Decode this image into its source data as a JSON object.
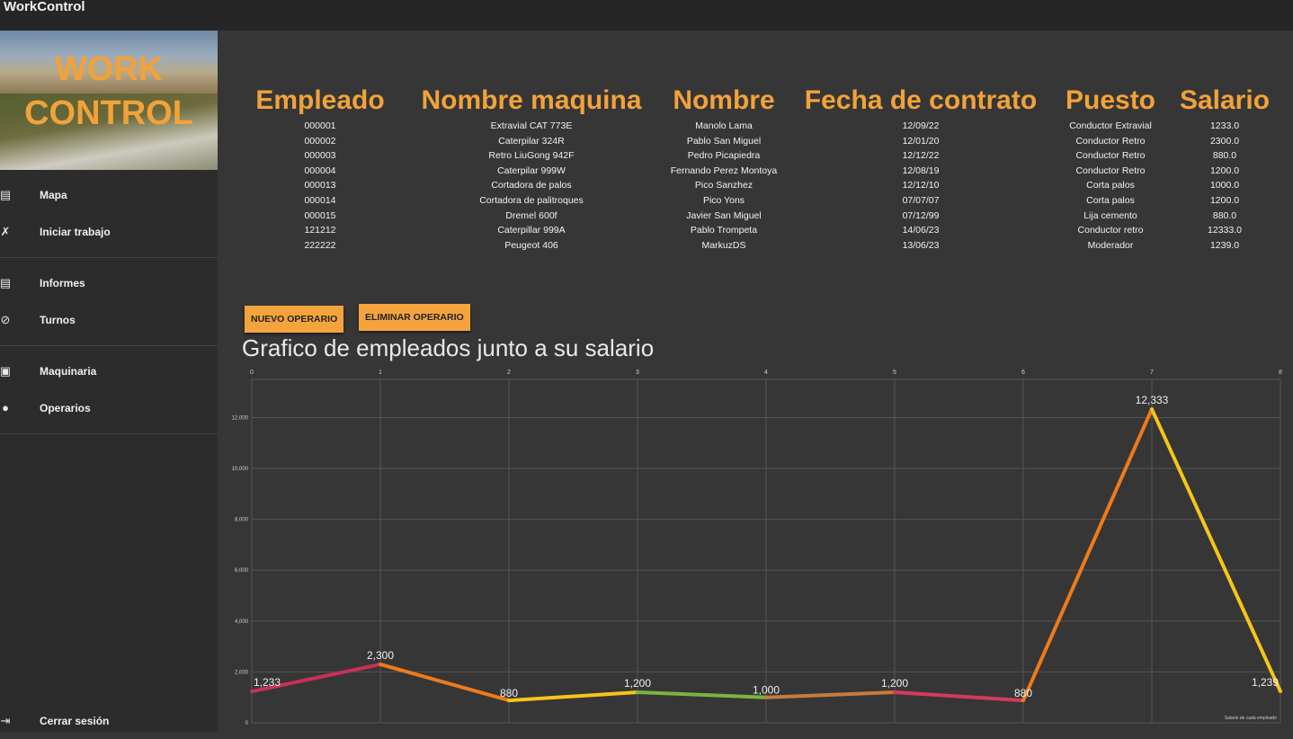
{
  "window": {
    "title": "WorkControl"
  },
  "banner": {
    "line1": "WORK",
    "line2": "CONTROL"
  },
  "menu": [
    {
      "icon": "map-icon",
      "label": "Mapa"
    },
    {
      "icon": "tools-icon",
      "label": "Iniciar trabajo"
    },
    {
      "icon": "report-icon",
      "label": "Informes"
    },
    {
      "icon": "clock-icon",
      "label": "Turnos"
    },
    {
      "icon": "truck-icon",
      "label": "Maquinaria"
    },
    {
      "icon": "person-icon",
      "label": "Operarios"
    }
  ],
  "logout": {
    "icon": "logout-icon",
    "label": "Cerrar sesión"
  },
  "table": {
    "headers": [
      "Empleado",
      "Nombre maquina",
      "Nombre",
      "Fecha de contrato",
      "Puesto",
      "Salario"
    ],
    "rows": [
      [
        "000001",
        "Extravial CAT 773E",
        "Manolo Lama",
        "12/09/22",
        "Conductor Extravial",
        "1233.0"
      ],
      [
        "000002",
        "Caterpilar 324R",
        "Pablo San Miguel",
        "12/01/20",
        "Conductor Retro",
        "2300.0"
      ],
      [
        "000003",
        "Retro LiuGong 942F",
        "Pedro Picapiedra",
        "12/12/22",
        "Conductor Retro",
        "880.0"
      ],
      [
        "000004",
        "Caterpilar 999W",
        "Fernando Perez Montoya",
        "12/08/19",
        "Conductor Retro",
        "1200.0"
      ],
      [
        "000013",
        "Cortadora de palos",
        "Pico Sanzhez",
        "12/12/10",
        "Corta palos",
        "1000.0"
      ],
      [
        "000014",
        "Cortadora de palitroques",
        "Pico Yons",
        "07/07/07",
        "Corta palos",
        "1200.0"
      ],
      [
        "000015",
        "Dremel 600f",
        "Javier San Miguel",
        "07/12/99",
        "Lija cemento",
        "880.0"
      ],
      [
        "121212",
        "Caterpillar 999A",
        "Pablo Trompeta",
        "14/06/23",
        "Conductor retro",
        "12333.0"
      ],
      [
        "222222",
        "Peugeot 406",
        "MarkuzDS",
        "13/06/23",
        "Moderador",
        "1239.0"
      ]
    ]
  },
  "buttons": {
    "new": "NUEVO OPERARIO",
    "delete": "ELIMINAR OPERARIO"
  },
  "chart_title": "Grafico de empleados junto a su salario",
  "chart_data": {
    "type": "line",
    "x": [
      0,
      1,
      2,
      3,
      4,
      5,
      6,
      7,
      8
    ],
    "values": [
      1233,
      2300,
      880,
      1200,
      1000,
      1200,
      880,
      12333,
      1239
    ],
    "data_labels": [
      "1,233",
      "2,300",
      "880",
      "1,200",
      "1,000",
      "1,200",
      "880",
      "12,333",
      "1,239"
    ],
    "x_ticks": [
      "0",
      "1",
      "2",
      "3",
      "4",
      "5",
      "6",
      "7",
      "8"
    ],
    "y_ticks": [
      "0",
      "2,000",
      "4,000",
      "6,000",
      "8,000",
      "10,000",
      "12,000"
    ],
    "y_tick_values": [
      0,
      2000,
      4000,
      6000,
      8000,
      10000,
      12000
    ],
    "xlim": [
      0,
      8
    ],
    "ylim": [
      0,
      13500
    ],
    "legend": "Salario de cada empleado",
    "legend_position": "bottom-right",
    "grid": true,
    "segment_colors": [
      "#e0732a",
      "#f07a1a",
      "#f5c518",
      "#7cb342",
      "#c97a3a",
      "#d63a5a",
      "#f07a1a",
      "#f5c518"
    ],
    "first_segment_color": "#c8305a",
    "line_color": "#d63a5a"
  }
}
